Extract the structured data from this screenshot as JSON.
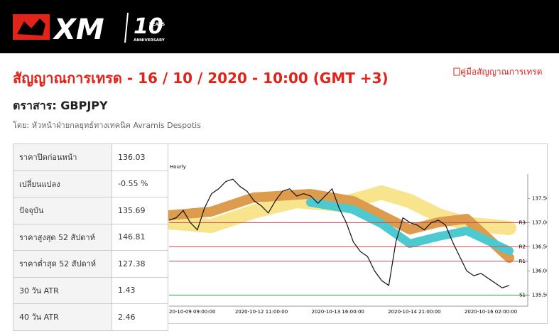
{
  "header": {
    "logo": "XM",
    "badge": "10",
    "badge_top": "YEARS",
    "badge_bottom": "ANNIVERSARY"
  },
  "title": "สัญญาณการเทรด - 16 / 10 / 2020 - 10:00 (GMT +3)",
  "guide_link": "คู่มือสัญญาณการเทรด",
  "instrument": "ตราสาร: GBPJPY",
  "byline": "โดย: หัวหน้าฝ่ายกลยุทธ์ทางเทคนิค Avramis Despotis",
  "table": {
    "rows": [
      [
        "ราคาปิดก่อนหน้า",
        "136.03"
      ],
      [
        "เปลี่ยนแปลง",
        "-0.55 %"
      ],
      [
        "ปัจจุบัน",
        "135.69"
      ],
      [
        "ราคาสูงสุด 52 สัปดาห์",
        "146.81"
      ],
      [
        "ราคาต่ำสุด 52 สัปดาห์",
        "127.38"
      ],
      [
        "30 วัน ATR",
        "1.43"
      ],
      [
        "40 วัน ATR",
        "2.46"
      ]
    ]
  },
  "chart_data": {
    "type": "line",
    "title": "Hourly",
    "x_labels": [
      "20-10-09 09:00:00",
      "2020-10-12 11:00:00",
      "2020-10-13 16:00:00",
      "2020-10-14 21:00:00",
      "2020-10-16 02:00:00"
    ],
    "ylim": [
      135.3,
      138.0
    ],
    "yticks": [
      {
        "value": 135.5,
        "label": "135.50"
      },
      {
        "value": 136,
        "label": "136.00"
      },
      {
        "value": 136.5,
        "label": "136.50"
      },
      {
        "value": 137,
        "label": "137.00"
      },
      {
        "value": 137.5,
        "label": "137.50"
      }
    ],
    "levels": [
      {
        "name": "R3",
        "value": 137,
        "color": "#c0504d"
      },
      {
        "name": "R2",
        "value": 136.5,
        "color": "#c0504d"
      },
      {
        "name": "R1",
        "value": 136.2,
        "color": "#c0504d"
      },
      {
        "name": "S1",
        "value": 135.5,
        "color": "#3a9a3a"
      }
    ],
    "series": [
      {
        "color": "#111111",
        "values": [
          137.05,
          137.1,
          137.25,
          137.0,
          136.85,
          137.3,
          137.6,
          137.7,
          137.85,
          137.9,
          137.75,
          137.65,
          137.45,
          137.35,
          137.2,
          137.45,
          137.65,
          137.7,
          137.55,
          137.6,
          137.55,
          137.4,
          137.55,
          137.7,
          137.3,
          137.0,
          136.6,
          136.4,
          136.3,
          136.0,
          135.8,
          135.7,
          136.6,
          137.1,
          137.0,
          136.95,
          136.85,
          137.0,
          137.05,
          136.95,
          136.6,
          136.3,
          136.0,
          135.9,
          135.95,
          135.85,
          135.75,
          135.65,
          135.7
        ]
      }
    ]
  }
}
